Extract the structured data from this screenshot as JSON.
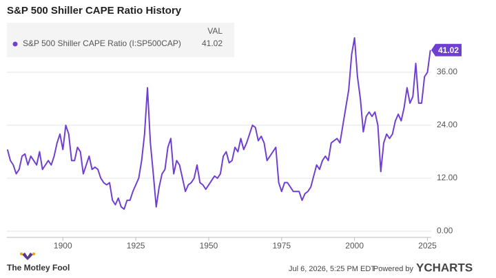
{
  "chart_data": {
    "type": "line",
    "title": "S&P 500 Shiller CAPE Ratio History",
    "legend_header": "VAL",
    "x": [
      1881,
      1882,
      1883,
      1884,
      1885,
      1886,
      1887,
      1888,
      1889,
      1890,
      1891,
      1892,
      1893,
      1894,
      1895,
      1896,
      1897,
      1898,
      1899,
      1900,
      1901,
      1902,
      1903,
      1904,
      1905,
      1906,
      1907,
      1908,
      1909,
      1910,
      1911,
      1912,
      1913,
      1914,
      1915,
      1916,
      1917,
      1918,
      1919,
      1920,
      1921,
      1922,
      1923,
      1924,
      1925,
      1926,
      1927,
      1928,
      1929,
      1930,
      1931,
      1932,
      1933,
      1934,
      1935,
      1936,
      1937,
      1938,
      1939,
      1940,
      1941,
      1942,
      1943,
      1944,
      1945,
      1946,
      1947,
      1948,
      1949,
      1950,
      1951,
      1952,
      1953,
      1954,
      1955,
      1956,
      1957,
      1958,
      1959,
      1960,
      1961,
      1962,
      1963,
      1964,
      1965,
      1966,
      1967,
      1968,
      1969,
      1970,
      1971,
      1972,
      1973,
      1974,
      1975,
      1976,
      1977,
      1978,
      1979,
      1980,
      1981,
      1982,
      1983,
      1984,
      1985,
      1986,
      1987,
      1988,
      1989,
      1990,
      1991,
      1992,
      1993,
      1994,
      1995,
      1996,
      1997,
      1998,
      1999,
      2000,
      2001,
      2002,
      2003,
      2004,
      2005,
      2006,
      2007,
      2008,
      2009,
      2010,
      2011,
      2012,
      2013,
      2014,
      2015,
      2016,
      2017,
      2018,
      2019,
      2020,
      2021,
      2022,
      2023,
      2024,
      2025,
      2026
    ],
    "series": [
      {
        "name": "S&P 500 Shiller CAPE Ratio (I:SP500CAP)",
        "color": "#6f3fd1",
        "values": [
          18.5,
          16,
          15,
          13,
          14,
          17,
          17.5,
          15,
          17,
          16,
          15,
          18,
          14,
          15,
          16,
          15,
          17,
          20,
          22,
          18.5,
          24,
          22,
          16,
          16,
          19,
          18,
          13,
          15,
          17,
          14,
          14.5,
          14,
          12,
          11,
          10.5,
          11,
          7,
          6,
          7.5,
          5.5,
          5,
          7,
          7,
          9,
          10.5,
          12,
          16,
          22,
          32.5,
          20,
          13,
          5.5,
          10,
          13,
          14,
          19,
          21,
          13,
          16,
          15,
          12,
          9,
          10.5,
          11,
          12,
          15,
          11,
          10.5,
          9.5,
          10.5,
          11.5,
          12.5,
          12,
          13,
          17,
          18,
          15.5,
          16,
          19,
          18,
          21,
          18.5,
          20,
          22,
          24,
          23.5,
          20.5,
          21.5,
          20,
          16,
          17,
          18,
          19,
          11,
          9,
          11,
          11,
          10,
          9,
          9,
          9,
          7,
          8.5,
          9,
          10,
          12.5,
          15,
          14,
          16,
          17,
          16,
          20,
          20.5,
          21,
          20,
          24,
          28,
          32,
          40,
          43.8,
          35,
          30,
          22.5,
          26,
          27,
          26,
          27,
          24,
          13.5,
          20,
          22,
          21,
          22,
          25,
          26.5,
          25,
          28,
          32.5,
          29,
          30.5,
          38,
          29,
          29,
          35,
          36,
          41.02
        ]
      }
    ],
    "xlim": [
      1880.8,
      2026.3
    ],
    "xticks": [
      1900,
      1925,
      1950,
      1975,
      2000,
      2025
    ],
    "ylim": [
      -1.4,
      48
    ],
    "yticks": [
      {
        "value": 0,
        "label": "0.00"
      },
      {
        "value": 12,
        "label": "12.00"
      },
      {
        "value": 24,
        "label": "24.00"
      },
      {
        "value": 36,
        "label": "36.00"
      }
    ],
    "grid": true
  },
  "footer": {
    "brand": "The Motley Fool",
    "timestamp": "Jul 6, 2026, 5:25 PM EDT",
    "powered": "Powered by",
    "provider": "YCHARTS"
  }
}
